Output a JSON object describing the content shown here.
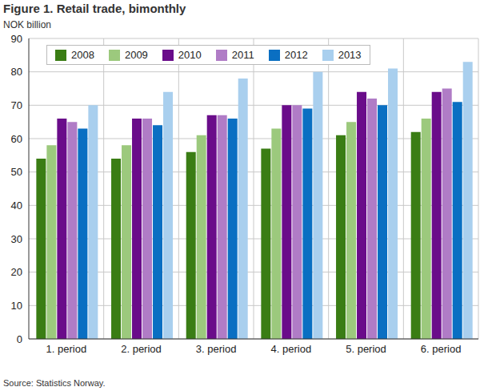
{
  "chart_data": {
    "type": "bar",
    "title": "Figure 1. Retail trade, bimonthly",
    "y_label": "NOK billion",
    "source": "Source: Statistics Norway.",
    "categories": [
      "1. period",
      "2. period",
      "3. period",
      "4. period",
      "5. period",
      "6. period"
    ],
    "series": [
      {
        "name": "2008",
        "color": "#3a7d14",
        "values": [
          54,
          54,
          56,
          57,
          61,
          62
        ]
      },
      {
        "name": "2009",
        "color": "#9cc97d",
        "values": [
          58,
          58,
          61,
          63,
          65,
          66
        ]
      },
      {
        "name": "2010",
        "color": "#6a0c8a",
        "values": [
          66,
          66,
          67,
          70,
          74,
          74
        ]
      },
      {
        "name": "2011",
        "color": "#b07cc6",
        "values": [
          65,
          66,
          67,
          70,
          72,
          75
        ]
      },
      {
        "name": "2012",
        "color": "#0a6fc2",
        "values": [
          63,
          64,
          66,
          69,
          70,
          71
        ]
      },
      {
        "name": "2013",
        "color": "#a9cfee",
        "values": [
          70,
          74,
          78,
          80,
          81,
          83
        ]
      }
    ],
    "ylim": [
      0,
      90
    ],
    "yticks": [
      0,
      10,
      20,
      30,
      40,
      50,
      60,
      70,
      80,
      90
    ],
    "grid": true,
    "legend": "top"
  }
}
